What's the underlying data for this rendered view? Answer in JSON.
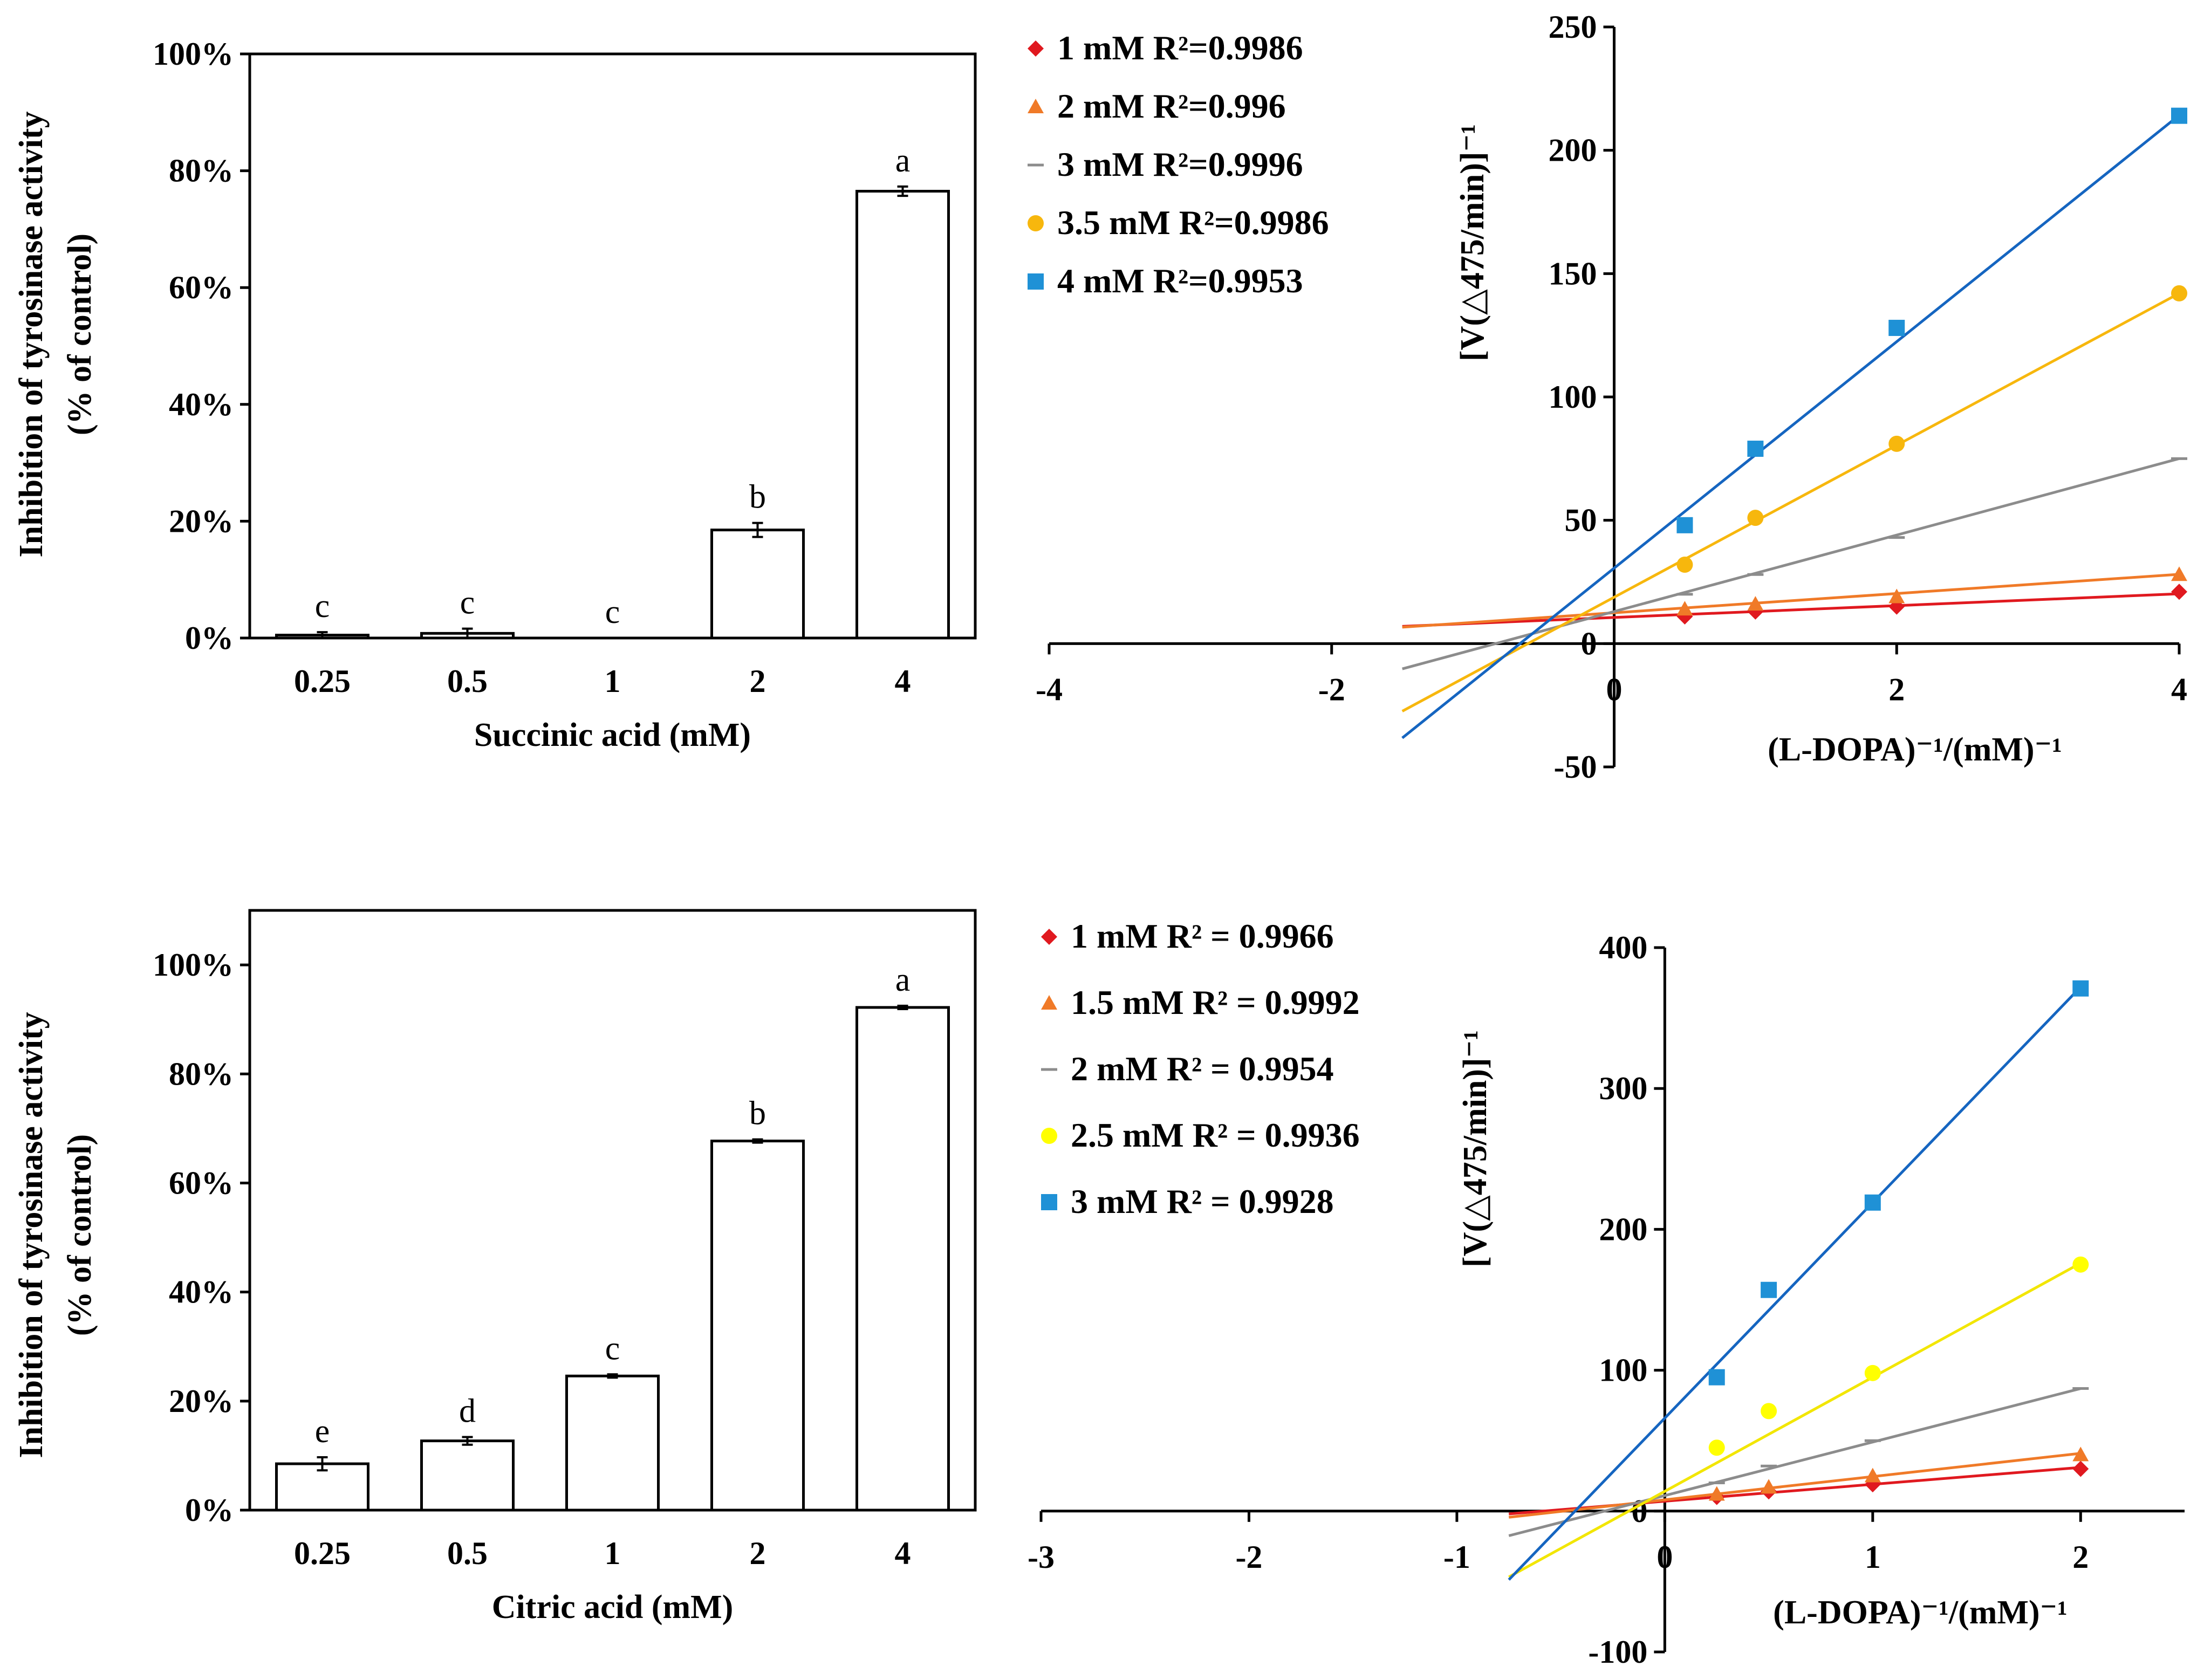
{
  "chart_data": [
    {
      "type": "bar",
      "id": "succinic-bar",
      "ylabel_line1": "Inhibition of tyrosinase activity",
      "ylabel_line2": "(% of control)",
      "xlabel": "Succinic acid (mM)",
      "categories": [
        "0.25",
        "0.5",
        "1",
        "2",
        "4"
      ],
      "values": [
        0.5,
        0.8,
        0,
        18.5,
        76.5
      ],
      "errors": [
        0.5,
        0.8,
        0,
        1.2,
        0.8
      ],
      "letters": [
        "c",
        "c",
        "c",
        "b",
        "a"
      ],
      "ylim": [
        0,
        100
      ],
      "yticks": [
        "0%",
        "20%",
        "40%",
        "60%",
        "80%",
        "100%"
      ]
    },
    {
      "type": "scatter",
      "id": "succinic-lb",
      "ylabel": "[V(△475/min)]⁻¹",
      "xlabel": "(L-DOPA)⁻¹/(mM)⁻¹",
      "xlim": [
        -4,
        4
      ],
      "ylim": [
        -50,
        250
      ],
      "xticks": [
        -4,
        -2,
        0,
        2,
        4
      ],
      "yticks": [
        -50,
        0,
        50,
        100,
        150,
        200,
        250
      ],
      "series": [
        {
          "name": "1 mM  R²=0.9986",
          "marker": "diamond",
          "color": "#e0191f",
          "x": [
            0.5,
            1,
            2,
            4
          ],
          "y": [
            11,
            13,
            15,
            21
          ],
          "fit": {
            "slope": 2.4,
            "intercept": 10.6
          }
        },
        {
          "name": "2 mM  R²=0.996",
          "marker": "triangle",
          "color": "#f07a28",
          "x": [
            0.5,
            1,
            2,
            4
          ],
          "y": [
            14,
            16,
            19,
            28
          ],
          "fit": {
            "slope": 3.9,
            "intercept": 12.5
          }
        },
        {
          "name": "3 mM  R²=0.9996",
          "marker": "dash",
          "color": "#8c8c8c",
          "x": [
            0.5,
            1,
            2,
            4
          ],
          "y": [
            20,
            28,
            43,
            75
          ],
          "fit": {
            "slope": 15.5,
            "intercept": 13
          }
        },
        {
          "name": "3.5 mM  R²=0.9986",
          "marker": "circle",
          "color": "#f7b70d",
          "x": [
            0.5,
            1,
            2,
            4
          ],
          "y": [
            32,
            51,
            81,
            142
          ],
          "fit": {
            "slope": 30.8,
            "intercept": 18.8
          }
        },
        {
          "name": "4 mM R²=0.9953",
          "marker": "square",
          "color": "#1f91d6",
          "x": [
            0.5,
            1,
            2,
            4
          ],
          "y": [
            48,
            79,
            128,
            214
          ],
          "fit": {
            "slope": 45.9,
            "intercept": 30.6
          }
        }
      ]
    },
    {
      "type": "bar",
      "id": "citric-bar",
      "ylabel_line1": "Inhibition of tyrosinase activity",
      "ylabel_line2": "(% of control)",
      "xlabel": "Citric acid (mM)",
      "categories": [
        "0.25",
        "0.5",
        "1",
        "2",
        "4"
      ],
      "values": [
        8.5,
        12.7,
        24.6,
        67.7,
        92.2
      ],
      "errors": [
        1.2,
        0.7,
        0.3,
        0.3,
        0.3
      ],
      "letters": [
        "e",
        "d",
        "c",
        "b",
        "a"
      ],
      "ylim": [
        0,
        110
      ],
      "yticks": [
        "0%",
        "20%",
        "40%",
        "60%",
        "80%",
        "100%"
      ]
    },
    {
      "type": "scatter",
      "id": "citric-lb",
      "ylabel": "[V(△475/min)]⁻¹",
      "xlabel": "(L-DOPA)⁻¹/(mM)⁻¹",
      "xlim": [
        -3,
        2.5
      ],
      "ylim": [
        -100,
        400
      ],
      "xticks": [
        -3,
        -2,
        -1,
        0,
        1,
        2
      ],
      "yticks": [
        -100,
        0,
        100,
        200,
        300,
        400
      ],
      "series": [
        {
          "name": "1 mM R² = 0.9966",
          "marker": "diamond",
          "color": "#e0191f",
          "x": [
            0.25,
            0.5,
            1,
            2
          ],
          "y": [
            10,
            14,
            19,
            30
          ],
          "fit": {
            "slope": 12,
            "intercept": 7
          }
        },
        {
          "name": "1.5 mM R² = 0.9992",
          "marker": "triangle",
          "color": "#f07a28",
          "x": [
            0.25,
            0.5,
            1,
            2
          ],
          "y": [
            12,
            17,
            25,
            40
          ],
          "fit": {
            "slope": 16.5,
            "intercept": 8
          }
        },
        {
          "name": "2 mM R² = 0.9954",
          "marker": "dash",
          "color": "#8c8c8c",
          "x": [
            0.25,
            0.5,
            1,
            2
          ],
          "y": [
            20,
            32,
            50,
            87
          ],
          "fit": {
            "slope": 38,
            "intercept": 11
          }
        },
        {
          "name": "2.5 mM R² = 0.9936",
          "marker": "circle",
          "color": "#ffff00",
          "x": [
            0.25,
            0.5,
            1,
            2
          ],
          "y": [
            45,
            71,
            98,
            175
          ],
          "fit": {
            "slope": 81,
            "intercept": 14
          }
        },
        {
          "name": "3 mM R² = 0.9928",
          "marker": "square",
          "color": "#1f91d6",
          "x": [
            0.25,
            0.5,
            1,
            2
          ],
          "y": [
            95,
            157,
            219,
            371
          ],
          "fit": {
            "slope": 153,
            "intercept": 66
          }
        }
      ]
    }
  ]
}
